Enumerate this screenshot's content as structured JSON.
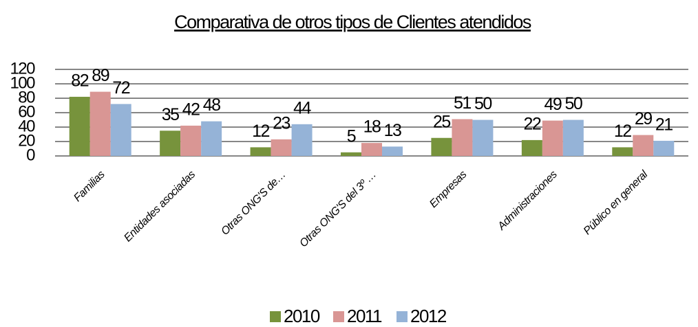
{
  "chart_data": {
    "type": "bar",
    "title": "Comparativa de otros tipos de Clientes atendidos",
    "categories": [
      "Familias",
      "Entidades asociadas",
      "Otras ONG'S de…",
      "Otras ONG'S del 3º …",
      "Empresas",
      "Administraciones",
      "Público en general"
    ],
    "series": [
      {
        "name": "2010",
        "color": "#77933c",
        "values": [
          82,
          35,
          12,
          5,
          25,
          22,
          12
        ]
      },
      {
        "name": "2011",
        "color": "#d99694",
        "values": [
          89,
          42,
          23,
          18,
          51,
          49,
          29
        ]
      },
      {
        "name": "2012",
        "color": "#95b3d7",
        "values": [
          72,
          48,
          44,
          13,
          50,
          50,
          21
        ]
      }
    ],
    "ylim": [
      0,
      120
    ],
    "yticks": [
      0,
      20,
      40,
      60,
      80,
      100,
      120
    ],
    "grid": true,
    "legend": "bottom"
  }
}
